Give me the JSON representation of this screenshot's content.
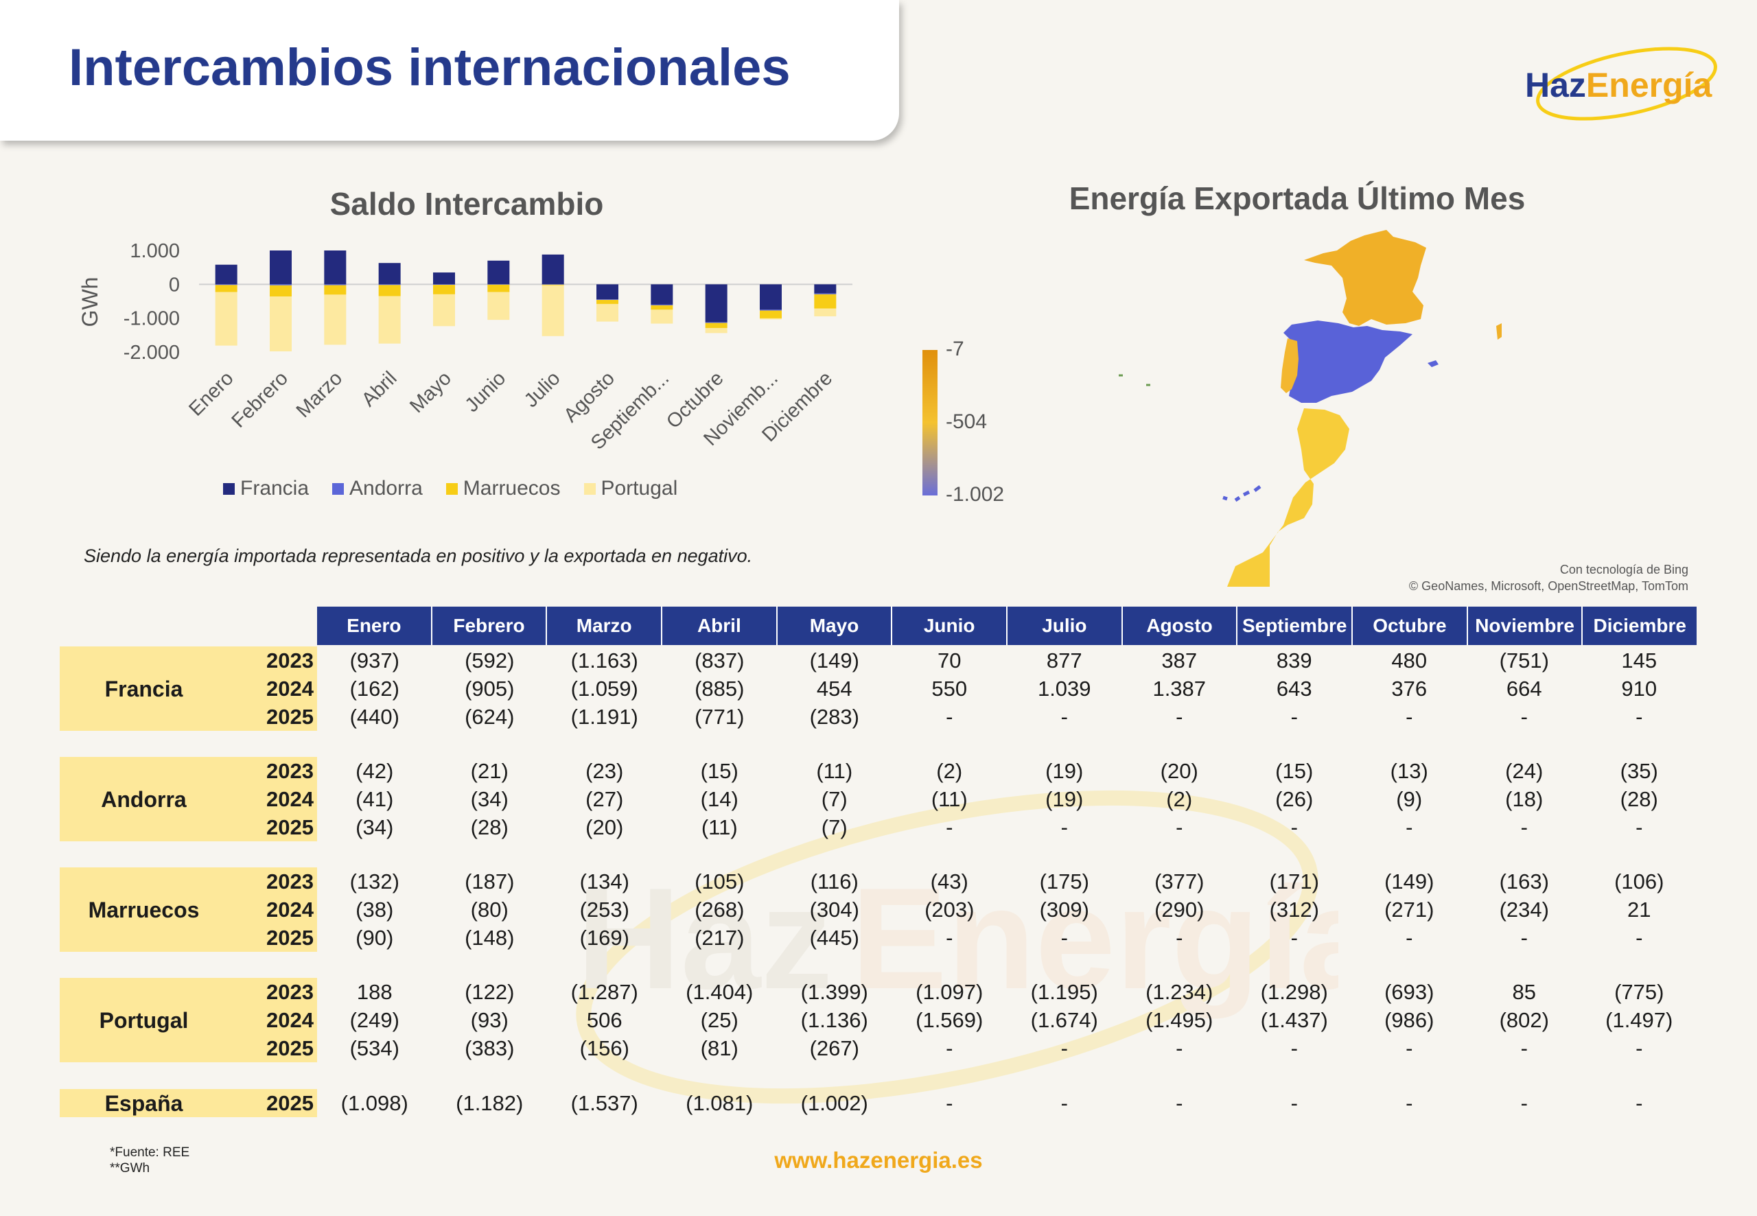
{
  "title": "Intercambios internacionales",
  "logo": {
    "part1": "Haz",
    "part2": "Energía"
  },
  "chart_title": "Saldo Intercambio",
  "map_title": "Energía Exportada Último Mes",
  "note": "Siendo la energía importada representada en positivo y la exportada en negativo.",
  "colors": {
    "francia": "#232a7e",
    "andorra": "#5b66d8",
    "marruecos": "#f7cd16",
    "portugal": "#fde9a0",
    "header": "#253a8c",
    "accent": "#f0a81b"
  },
  "chart_data": {
    "type": "bar",
    "stacked": true,
    "title": "Saldo Intercambio",
    "ylabel": "GWh",
    "ylim": [
      -2000,
      1000
    ],
    "yticks": [
      1000,
      0,
      -1000,
      -2000
    ],
    "ytick_labels": [
      "1.000",
      "0",
      "-1.000",
      "-2.000"
    ],
    "categories": [
      "Enero",
      "Febrero",
      "Marzo",
      "Abril",
      "Mayo",
      "Junio",
      "Julio",
      "Agosto",
      "Septiemb...",
      "Octubre",
      "Noviemb...",
      "Diciembre"
    ],
    "legend_position": "bottom",
    "series": [
      {
        "name": "Francia",
        "color": "#232a7e",
        "values": [
          580,
          1000,
          1000,
          630,
          350,
          700,
          880,
          -440,
          -600,
          -1120,
          -750,
          -270
        ]
      },
      {
        "name": "Andorra",
        "color": "#5b66d8",
        "values": [
          -20,
          -30,
          -25,
          -20,
          -15,
          -10,
          -10,
          -20,
          -20,
          -20,
          -25,
          -25
        ]
      },
      {
        "name": "Marruecos",
        "color": "#f7cd16",
        "values": [
          -210,
          -330,
          -280,
          -330,
          -280,
          -220,
          -20,
          -120,
          -130,
          -150,
          -230,
          -420
        ]
      },
      {
        "name": "Portugal",
        "color": "#fde9a0",
        "values": [
          -1580,
          -1620,
          -1480,
          -1400,
          -940,
          -820,
          -1500,
          -520,
          -410,
          -150,
          -30,
          -230
        ]
      }
    ]
  },
  "scale": {
    "max": "-7",
    "mid": "-504",
    "min": "-1.002"
  },
  "bing": {
    "line1": "Con tecnología de Bing",
    "line2": "© GeoNames, Microsoft, OpenStreetMap, TomTom"
  },
  "months": [
    "Enero",
    "Febrero",
    "Marzo",
    "Abril",
    "Mayo",
    "Junio",
    "Julio",
    "Agosto",
    "Septiembre",
    "Octubre",
    "Noviembre",
    "Diciembre"
  ],
  "table": [
    {
      "country": "Francia",
      "rows": [
        {
          "year": "2023",
          "values": [
            "(937)",
            "(592)",
            "(1.163)",
            "(837)",
            "(149)",
            "70",
            "877",
            "387",
            "839",
            "480",
            "(751)",
            "145"
          ]
        },
        {
          "year": "2024",
          "values": [
            "(162)",
            "(905)",
            "(1.059)",
            "(885)",
            "454",
            "550",
            "1.039",
            "1.387",
            "643",
            "376",
            "664",
            "910"
          ]
        },
        {
          "year": "2025",
          "values": [
            "(440)",
            "(624)",
            "(1.191)",
            "(771)",
            "(283)",
            "-",
            "-",
            "-",
            "-",
            "-",
            "-",
            "-"
          ]
        }
      ]
    },
    {
      "country": "Andorra",
      "rows": [
        {
          "year": "2023",
          "values": [
            "(42)",
            "(21)",
            "(23)",
            "(15)",
            "(11)",
            "(2)",
            "(19)",
            "(20)",
            "(15)",
            "(13)",
            "(24)",
            "(35)"
          ]
        },
        {
          "year": "2024",
          "values": [
            "(41)",
            "(34)",
            "(27)",
            "(14)",
            "(7)",
            "(11)",
            "(19)",
            "(2)",
            "(26)",
            "(9)",
            "(18)",
            "(28)"
          ]
        },
        {
          "year": "2025",
          "values": [
            "(34)",
            "(28)",
            "(20)",
            "(11)",
            "(7)",
            "-",
            "-",
            "-",
            "-",
            "-",
            "-",
            "-"
          ]
        }
      ]
    },
    {
      "country": "Marruecos",
      "rows": [
        {
          "year": "2023",
          "values": [
            "(132)",
            "(187)",
            "(134)",
            "(105)",
            "(116)",
            "(43)",
            "(175)",
            "(377)",
            "(171)",
            "(149)",
            "(163)",
            "(106)"
          ]
        },
        {
          "year": "2024",
          "values": [
            "(38)",
            "(80)",
            "(253)",
            "(268)",
            "(304)",
            "(203)",
            "(309)",
            "(290)",
            "(312)",
            "(271)",
            "(234)",
            "21"
          ]
        },
        {
          "year": "2025",
          "values": [
            "(90)",
            "(148)",
            "(169)",
            "(217)",
            "(445)",
            "-",
            "-",
            "-",
            "-",
            "-",
            "-",
            "-"
          ]
        }
      ]
    },
    {
      "country": "Portugal",
      "rows": [
        {
          "year": "2023",
          "values": [
            "188",
            "(122)",
            "(1.287)",
            "(1.404)",
            "(1.399)",
            "(1.097)",
            "(1.195)",
            "(1.234)",
            "(1.298)",
            "(693)",
            "85",
            "(775)"
          ]
        },
        {
          "year": "2024",
          "values": [
            "(249)",
            "(93)",
            "506",
            "(25)",
            "(1.136)",
            "(1.569)",
            "(1.674)",
            "(1.495)",
            "(1.437)",
            "(986)",
            "(802)",
            "(1.497)"
          ]
        },
        {
          "year": "2025",
          "values": [
            "(534)",
            "(383)",
            "(156)",
            "(81)",
            "(267)",
            "-",
            "-",
            "-",
            "-",
            "-",
            "-",
            "-"
          ]
        }
      ]
    },
    {
      "country": "España",
      "rows": [
        {
          "year": "2025",
          "values": [
            "(1.098)",
            "(1.182)",
            "(1.537)",
            "(1.081)",
            "(1.002)",
            "-",
            "-",
            "-",
            "-",
            "-",
            "-",
            "-"
          ]
        }
      ]
    }
  ],
  "footnote": {
    "line1": "*Fuente: REE",
    "line2": "**GWh"
  },
  "website": "www.hazenergia.es"
}
